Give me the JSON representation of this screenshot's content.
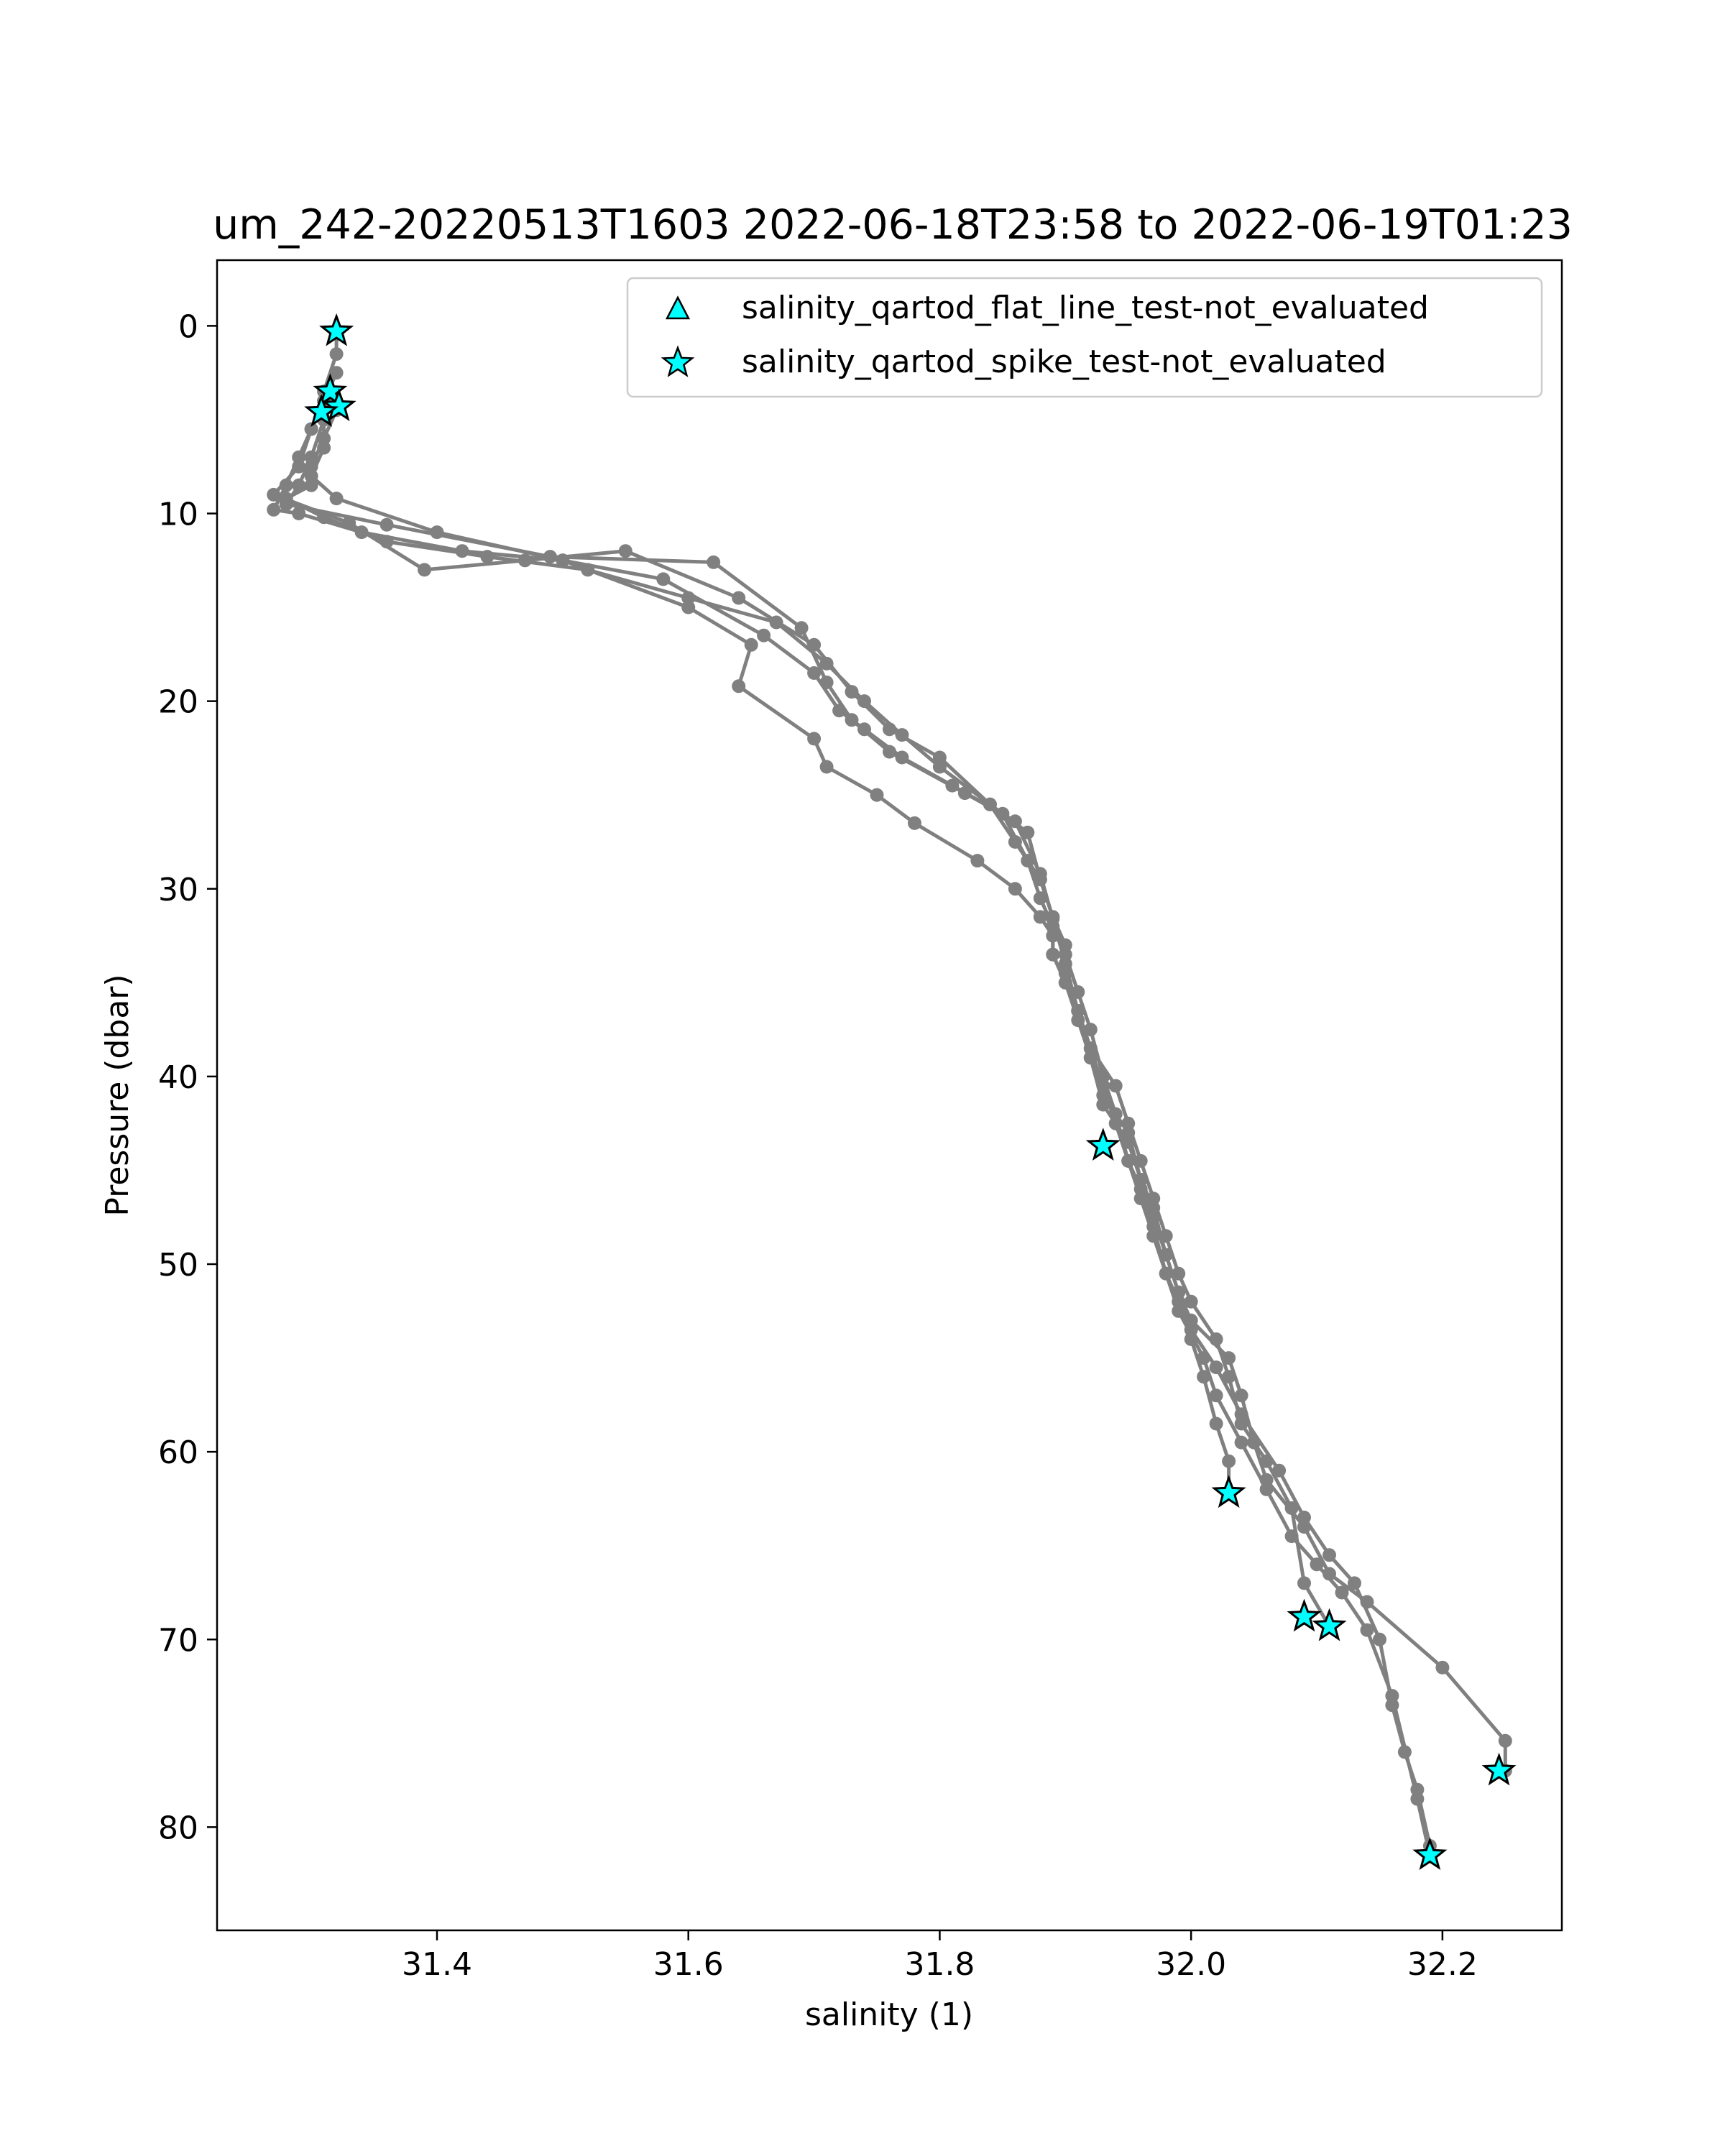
{
  "chart_data": {
    "type": "line",
    "title": "um_242-20220513T1603 2022-06-18T23:58 to 2022-06-19T01:23",
    "xlabel": "salinity (1)",
    "ylabel": "Pressure (dbar)",
    "xlim": [
      31.225,
      32.295
    ],
    "ylim": [
      85.5,
      -3.5
    ],
    "y_inverted": true,
    "grid": false,
    "legend_position": "top-right",
    "xticks": [
      {
        "value": 31.4,
        "label": "31.4"
      },
      {
        "value": 31.6,
        "label": "31.6"
      },
      {
        "value": 31.8,
        "label": "31.8"
      },
      {
        "value": 32.0,
        "label": "32.0"
      },
      {
        "value": 32.2,
        "label": "32.2"
      }
    ],
    "yticks": [
      {
        "value": 0,
        "label": "0"
      },
      {
        "value": 10,
        "label": "10"
      },
      {
        "value": 20,
        "label": "20"
      },
      {
        "value": 30,
        "label": "30"
      },
      {
        "value": 40,
        "label": "40"
      },
      {
        "value": 50,
        "label": "50"
      },
      {
        "value": 60,
        "label": "60"
      },
      {
        "value": 70,
        "label": "70"
      },
      {
        "value": 80,
        "label": "80"
      }
    ],
    "colors": {
      "profile": "#808080",
      "flag_fill": "#00ffff",
      "flag_edge": "#000000"
    },
    "series": [
      {
        "x": [
          31.32,
          31.32,
          31.31,
          31.31,
          31.3,
          31.29,
          31.28,
          31.36,
          31.49,
          31.62,
          31.69,
          31.71,
          31.73,
          31.76,
          31.82,
          31.86,
          31.88,
          31.89,
          31.9,
          31.91,
          31.92,
          31.93,
          31.95,
          31.96,
          31.97,
          31.98,
          31.99,
          32.0,
          32.03,
          32.04,
          32.05,
          32.06,
          32.09,
          32.11,
          32.14,
          32.2,
          32.25,
          32.25
        ],
        "y": [
          0.3,
          1.5,
          3.5,
          5.0,
          7.0,
          8.5,
          9.5,
          10.6,
          12.3,
          12.6,
          16.1,
          19.0,
          21.0,
          22.7,
          24.9,
          26.4,
          29.2,
          31.6,
          34.0,
          36.5,
          39.0,
          41.5,
          43.5,
          45.5,
          47.5,
          49.5,
          51.5,
          53.0,
          55.0,
          57.0,
          59.5,
          61.5,
          64.0,
          66.5,
          68.0,
          71.5,
          75.4,
          77.0
        ]
      },
      {
        "x": [
          31.32,
          31.31,
          31.3,
          31.29,
          31.27,
          31.33,
          31.39,
          31.47,
          31.55,
          31.64,
          31.7,
          31.73,
          31.76,
          31.8,
          31.84,
          31.87,
          31.88,
          31.89,
          31.9,
          31.91,
          31.92,
          31.93,
          31.94,
          31.95,
          31.96,
          31.97,
          31.98,
          31.99,
          32.01,
          32.02,
          32.04,
          32.06,
          32.08,
          32.1,
          32.12,
          32.14,
          32.16,
          32.18,
          32.19
        ],
        "y": [
          2.5,
          4.0,
          5.5,
          7.5,
          9.0,
          10.5,
          13.0,
          12.5,
          12.0,
          14.5,
          17.0,
          19.5,
          21.5,
          23.0,
          25.5,
          27.0,
          29.5,
          31.5,
          33.5,
          35.5,
          37.5,
          40.0,
          42.0,
          44.5,
          46.5,
          48.5,
          50.5,
          52.5,
          55.0,
          57.0,
          59.5,
          62.0,
          64.5,
          66.0,
          67.5,
          69.5,
          73.0,
          78.5,
          81.5
        ]
      },
      {
        "x": [
          31.31,
          31.3,
          31.29,
          31.28,
          31.27,
          31.29,
          31.34,
          31.42,
          31.5,
          31.58,
          31.66,
          31.7,
          31.72,
          31.74,
          31.77,
          31.81,
          31.85,
          31.87,
          31.88,
          31.89,
          31.89,
          31.9,
          31.91,
          31.92,
          31.93,
          31.95,
          31.96,
          31.97,
          31.98,
          31.99,
          32.0,
          32.02,
          32.04,
          32.07,
          32.09,
          32.11,
          32.13,
          32.15,
          32.16,
          32.17,
          32.18,
          32.19
        ],
        "y": [
          4.0,
          5.5,
          7.0,
          8.5,
          9.8,
          10.0,
          11.0,
          12.0,
          12.5,
          13.5,
          16.5,
          18.5,
          20.5,
          21.5,
          23.0,
          24.5,
          26.0,
          28.5,
          30.5,
          32.0,
          33.5,
          35.0,
          37.0,
          39.0,
          41.0,
          43.0,
          45.5,
          47.0,
          49.5,
          51.5,
          53.5,
          55.5,
          58.0,
          61.0,
          63.5,
          65.5,
          67.0,
          70.0,
          73.5,
          76.0,
          78.0,
          81.0
        ]
      },
      {
        "x": [
          31.32,
          31.31,
          31.3,
          31.3,
          31.28,
          31.31,
          31.36,
          31.44,
          31.52,
          31.6,
          31.67,
          31.71,
          31.74,
          31.77,
          31.8,
          31.84,
          31.86,
          31.88,
          31.89,
          31.9,
          31.9,
          31.91,
          31.92,
          31.94,
          31.95,
          31.96,
          31.97,
          31.98,
          31.99,
          32.0,
          32.02,
          32.03,
          32.04,
          32.06,
          32.08,
          32.09,
          32.11
        ],
        "y": [
          4.5,
          6.0,
          7.5,
          8.5,
          9.2,
          10.2,
          11.5,
          12.3,
          13.0,
          14.5,
          15.8,
          18.0,
          20.0,
          21.8,
          23.5,
          25.5,
          27.5,
          29.5,
          31.5,
          33.0,
          34.5,
          36.5,
          38.5,
          40.5,
          42.5,
          44.5,
          46.5,
          48.5,
          50.5,
          52.0,
          54.0,
          56.0,
          58.5,
          60.5,
          63.0,
          67.0,
          69.3
        ]
      },
      {
        "x": [
          31.31,
          31.31,
          31.3,
          31.32,
          31.4,
          31.5,
          31.6,
          31.65,
          31.64,
          31.7,
          31.71,
          31.75,
          31.78,
          31.83,
          31.86,
          31.88,
          31.89,
          31.89,
          31.9,
          31.91,
          31.92,
          31.93,
          31.94,
          31.95,
          31.96,
          31.97,
          31.98,
          31.99,
          32.0,
          32.01,
          32.02,
          32.03,
          32.03
        ],
        "y": [
          5.0,
          6.5,
          8.0,
          9.2,
          11.0,
          12.5,
          15.0,
          17.0,
          19.2,
          22.0,
          23.5,
          25.0,
          26.5,
          28.5,
          30.0,
          31.5,
          32.5,
          33.5,
          35.0,
          36.5,
          38.5,
          40.5,
          42.5,
          44.5,
          46.0,
          48.0,
          50.5,
          52.0,
          54.0,
          56.0,
          58.5,
          60.5,
          62.2
        ]
      }
    ],
    "flags": [
      {
        "name": "salinity_qartod_flat_line_test-not_evaluated",
        "marker": "triangle",
        "x": [],
        "y": []
      },
      {
        "name": "salinity_qartod_spike_test-not_evaluated",
        "marker": "star",
        "x": [
          31.32,
          31.315,
          31.322,
          31.308,
          31.93,
          32.03,
          32.09,
          32.11,
          32.245,
          32.19
        ],
        "y": [
          0.3,
          3.5,
          4.3,
          4.6,
          43.7,
          62.2,
          68.8,
          69.3,
          77.0,
          81.5
        ]
      }
    ]
  }
}
